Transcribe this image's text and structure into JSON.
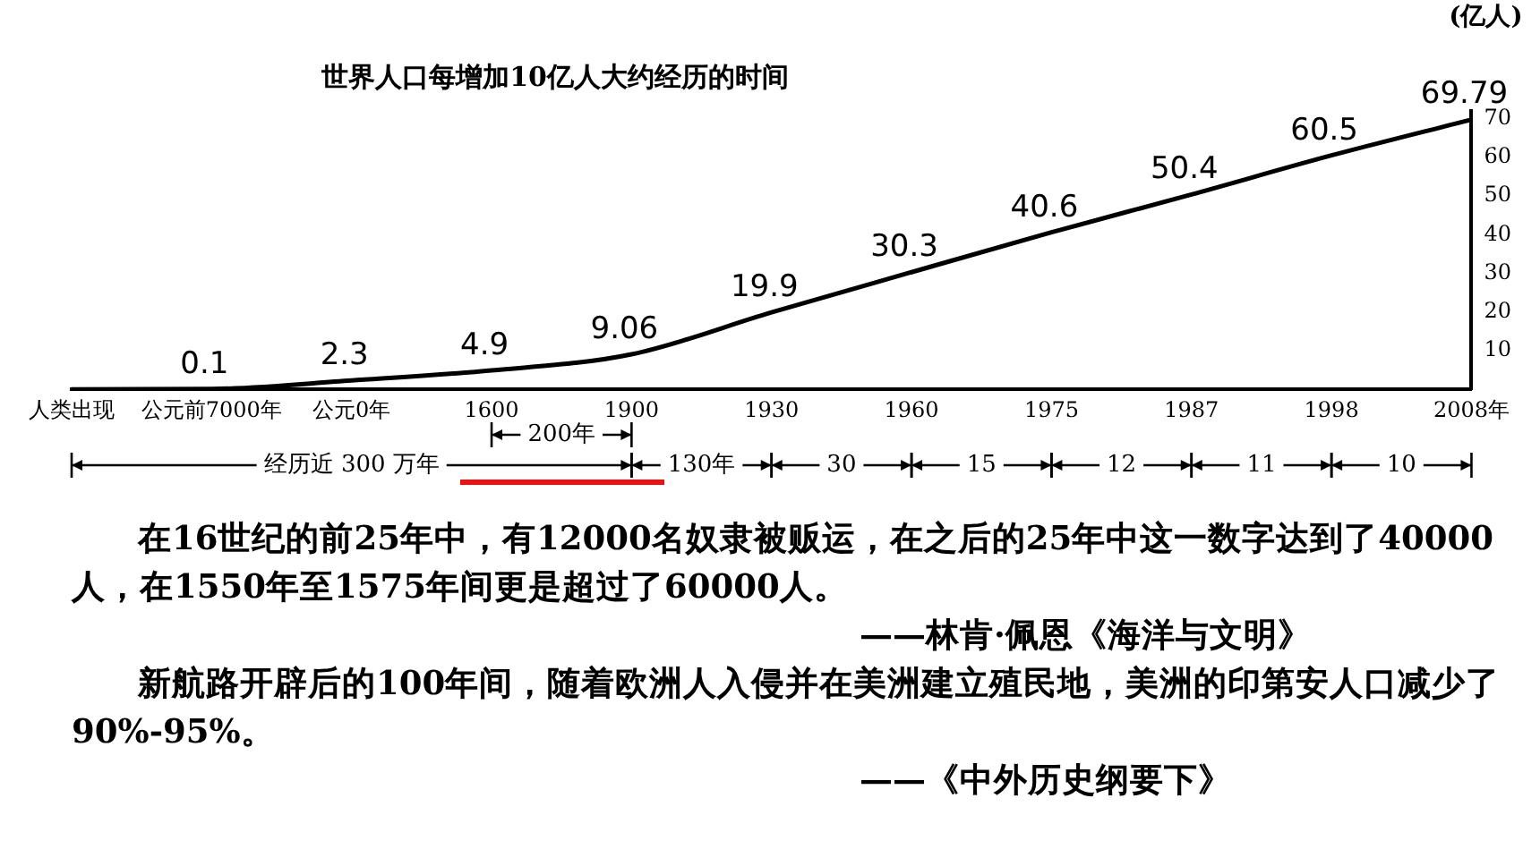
{
  "chart_data": {
    "type": "line",
    "title": "世界人口每增加10亿人大约经历的时间",
    "y2label": "(亿人)",
    "categories": [
      "人类出现",
      "公元前7000年",
      "公元0年",
      "1600",
      "1900",
      "1930",
      "1960",
      "1975",
      "1987",
      "1998",
      "2008年"
    ],
    "series": [
      {
        "color": "#000000",
        "axis": "y2",
        "values": [
          0,
          0.1,
          2.3,
          4.9,
          9.06,
          19.9,
          30.3,
          40.6,
          50.4,
          60.5,
          69.79
        ],
        "value_labels": [
          null,
          "0.1",
          "2.3",
          "4.9",
          "9.06",
          "19.9",
          "30.3",
          "40.6",
          "50.4",
          "60.5",
          "69.79"
        ]
      }
    ],
    "y2lim": [
      0,
      72
    ],
    "y2ticks": [
      10,
      20,
      30,
      40,
      50,
      60,
      70
    ],
    "grid": false,
    "legend": false,
    "marker": "none",
    "line_style": "solid",
    "annotations": [
      "经历近 300 万年",
      "200年",
      "130年",
      "30",
      "15",
      "12",
      "11",
      "10",
      "在16世纪的前25年中，有12000名奴隶被贩运，在之后的25年中这一数字达到了40000人，在1550年至1575年间更是超过了60000人。",
      "——林肯·佩恩《海洋与文明》",
      "新航路开辟后的100年间，随着欧洲人入侵并在美洲建立殖民地，美洲的印第安人口减少了90%-95%。",
      "——《中外历史纲要下》"
    ]
  }
}
